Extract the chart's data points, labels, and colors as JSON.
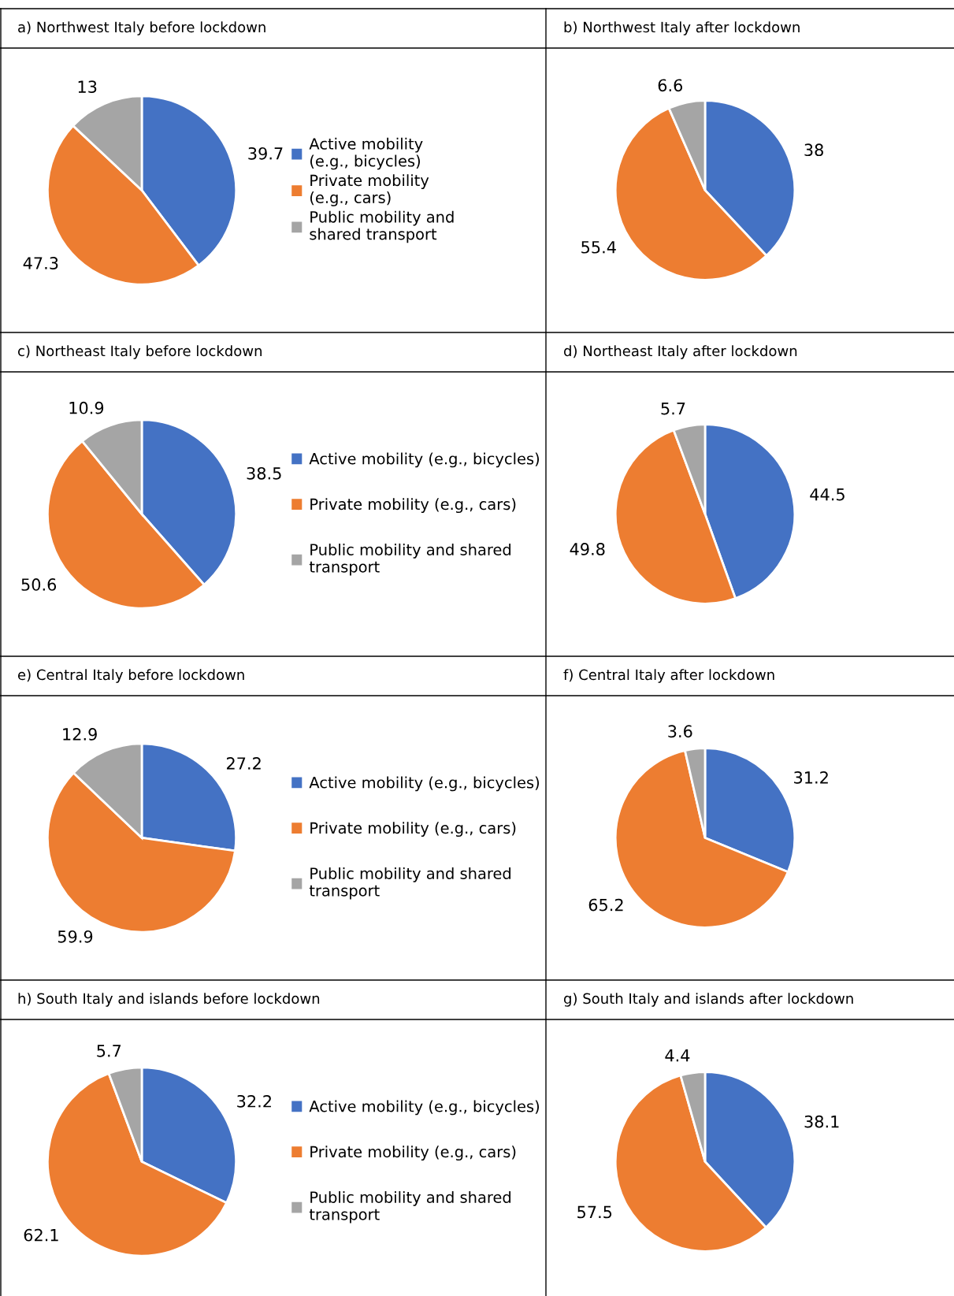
{
  "chart_data": [
    {
      "type": "pie",
      "title": "a) Northwest Italy before lockdown",
      "categories": [
        "Active mobility\n(e.g., bicycles)",
        "Private mobility\n(e.g., cars)",
        "Public mobility and\nshared transport"
      ],
      "values": [
        39.7,
        47.3,
        13
      ],
      "colors": [
        "#4472c4",
        "#ed7d31",
        "#a5a5a5"
      ],
      "data_labels": true,
      "legend": "right"
    },
    {
      "type": "pie",
      "title": "b) Northwest Italy after lockdown",
      "categories": [
        null,
        null,
        null
      ],
      "values": [
        38,
        55.4,
        6.6
      ],
      "colors": [
        "#4472c4",
        "#ed7d31",
        "#a5a5a5"
      ],
      "data_labels": true
    },
    {
      "type": "pie",
      "title": "c) Northeast Italy before lockdown",
      "categories": [
        "Active mobility (e.g., bicycles)",
        "Private mobility (e.g., cars)",
        "Public mobility and shared\ntransport"
      ],
      "values": [
        38.5,
        50.6,
        10.9
      ],
      "colors": [
        "#4472c4",
        "#ed7d31",
        "#a5a5a5"
      ],
      "data_labels": true,
      "legend": "right"
    },
    {
      "type": "pie",
      "title": "d) Northeast Italy after lockdown",
      "categories": [
        null,
        null,
        null
      ],
      "values": [
        44.5,
        49.8,
        5.7
      ],
      "colors": [
        "#4472c4",
        "#ed7d31",
        "#a5a5a5"
      ],
      "data_labels": true
    },
    {
      "type": "pie",
      "title": "e) Central Italy before lockdown",
      "categories": [
        "Active mobility (e.g., bicycles)",
        "Private mobility (e.g., cars)",
        "Public mobility and shared\ntransport"
      ],
      "values": [
        27.2,
        59.9,
        12.9
      ],
      "colors": [
        "#4472c4",
        "#ed7d31",
        "#a5a5a5"
      ],
      "data_labels": true,
      "legend": "right"
    },
    {
      "type": "pie",
      "title": "f) Central Italy after lockdown",
      "categories": [
        null,
        null,
        null
      ],
      "values": [
        31.2,
        65.2,
        3.6
      ],
      "colors": [
        "#4472c4",
        "#ed7d31",
        "#a5a5a5"
      ],
      "data_labels": true
    },
    {
      "type": "pie",
      "title": "h) South Italy and islands before lockdown",
      "categories": [
        "Active mobility (e.g., bicycles)",
        "Private mobility (e.g., cars)",
        "Public mobility and shared\ntransport"
      ],
      "values": [
        32.2,
        62.1,
        5.7
      ],
      "colors": [
        "#4472c4",
        "#ed7d31",
        "#a5a5a5"
      ],
      "data_labels": true,
      "legend": "right"
    },
    {
      "type": "pie",
      "title": "g) South Italy and islands after lockdown",
      "categories": [
        null,
        null,
        null
      ],
      "values": [
        38.1,
        57.5,
        4.4
      ],
      "colors": [
        "#4472c4",
        "#ed7d31",
        "#a5a5a5"
      ],
      "data_labels": true
    }
  ]
}
